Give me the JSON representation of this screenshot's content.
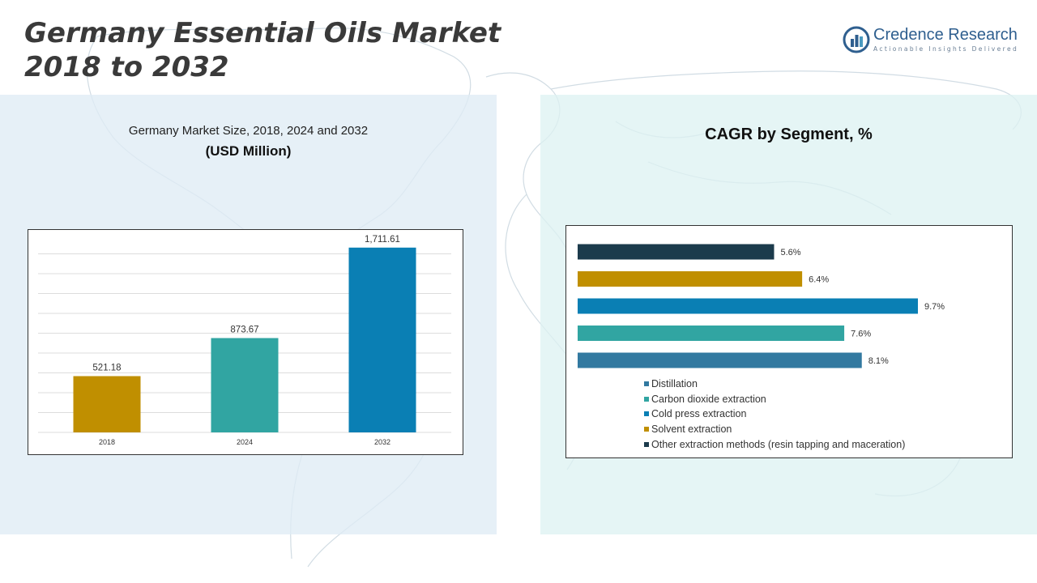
{
  "header": {
    "title_line1": "Germany Essential Oils Market",
    "title_line2": "2018 to 2032"
  },
  "logo": {
    "name": "Credence Research",
    "tagline": "Actionable Insights Delivered",
    "icon": "bar-chart-globe-icon"
  },
  "left_panel": {
    "subtitle": "Germany Market Size, 2018, 2024 and 2032",
    "unit": "(USD Million)"
  },
  "right_panel": {
    "title": "CAGR by Segment, %"
  },
  "colors": {
    "gold": "#c08f00",
    "teal": "#31a5a2",
    "blue": "#0a7fb4",
    "steel": "#3279a0",
    "navy": "#1c3b4c"
  },
  "chart_data": [
    {
      "type": "bar",
      "title": "Germany Market Size, 2018, 2024 and 2032",
      "ylabel": "(USD Million)",
      "categories": [
        "2018",
        "2024",
        "2032"
      ],
      "values": [
        521.18,
        873.67,
        1711.61
      ],
      "labels": [
        "521.18",
        "873.67",
        "1,711.61"
      ],
      "colors": [
        "#c08f00",
        "#31a5a2",
        "#0a7fb4"
      ],
      "ylim": [
        0,
        1800
      ],
      "grid": true
    },
    {
      "type": "bar",
      "orientation": "horizontal",
      "title": "CAGR by Segment, %",
      "categories": [
        "Other extraction methods (resin tapping and maceration)",
        "Solvent extraction",
        "Cold press extraction",
        "Carbon dioxide extraction",
        "Distillation"
      ],
      "values": [
        5.6,
        6.4,
        9.7,
        7.6,
        8.1
      ],
      "labels": [
        "5.6%",
        "6.4%",
        "9.7%",
        "7.6%",
        "8.1%"
      ],
      "colors": [
        "#1c3b4c",
        "#c08f00",
        "#0a7fb4",
        "#31a5a2",
        "#3279a0"
      ],
      "xlim": [
        0,
        10
      ],
      "legend": [
        {
          "label": "Distillation",
          "color": "#3279a0"
        },
        {
          "label": "Carbon dioxide extraction",
          "color": "#31a5a2"
        },
        {
          "label": "Cold press extraction",
          "color": "#0a7fb4"
        },
        {
          "label": "Solvent extraction",
          "color": "#c08f00"
        },
        {
          "label": "Other extraction methods (resin tapping and maceration)",
          "color": "#1c3b4c"
        }
      ],
      "legend_position": "bottom"
    }
  ]
}
